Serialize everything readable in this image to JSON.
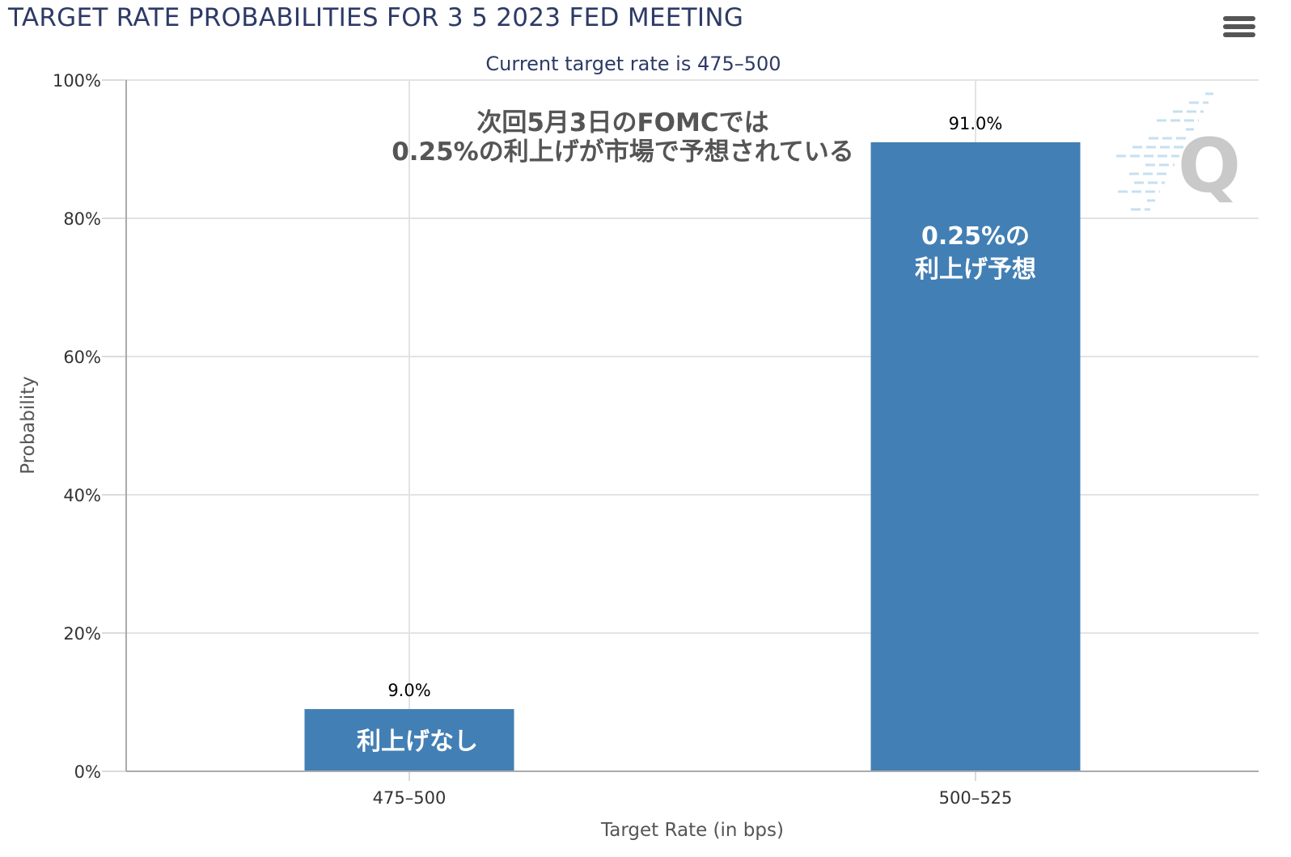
{
  "header": {
    "title": "TARGET RATE PROBABILITIES FOR 3 5 2023 FED MEETING",
    "menu_icon": "hamburger-menu-icon"
  },
  "chart_data": {
    "type": "bar",
    "title": "TARGET RATE PROBABILITIES FOR 3 5 2023 FED MEETING",
    "subtitle": "Current target rate is 475–500",
    "xlabel": "Target Rate (in bps)",
    "ylabel": "Probability",
    "categories": [
      "475–500",
      "500–525"
    ],
    "values": [
      9.0,
      91.0
    ],
    "data_labels": [
      "9.0%",
      "91.0%"
    ],
    "ylim": [
      0,
      100
    ],
    "yticks": [
      0,
      20,
      40,
      60,
      80,
      100
    ],
    "ytick_labels": [
      "0%",
      "20%",
      "40%",
      "60%",
      "80%",
      "100%"
    ],
    "grid": true,
    "bar_color": "#427fb4",
    "annotations": {
      "main_line1": "次回5月3日のFOMCでは",
      "main_line2": "0.25%の利上げが市場で予想されている",
      "bar1_note": "利上げなし",
      "bar2_note_line1": "0.25%の",
      "bar2_note_line2": "利上げ予想"
    }
  },
  "watermark": {
    "letter": "Q"
  }
}
